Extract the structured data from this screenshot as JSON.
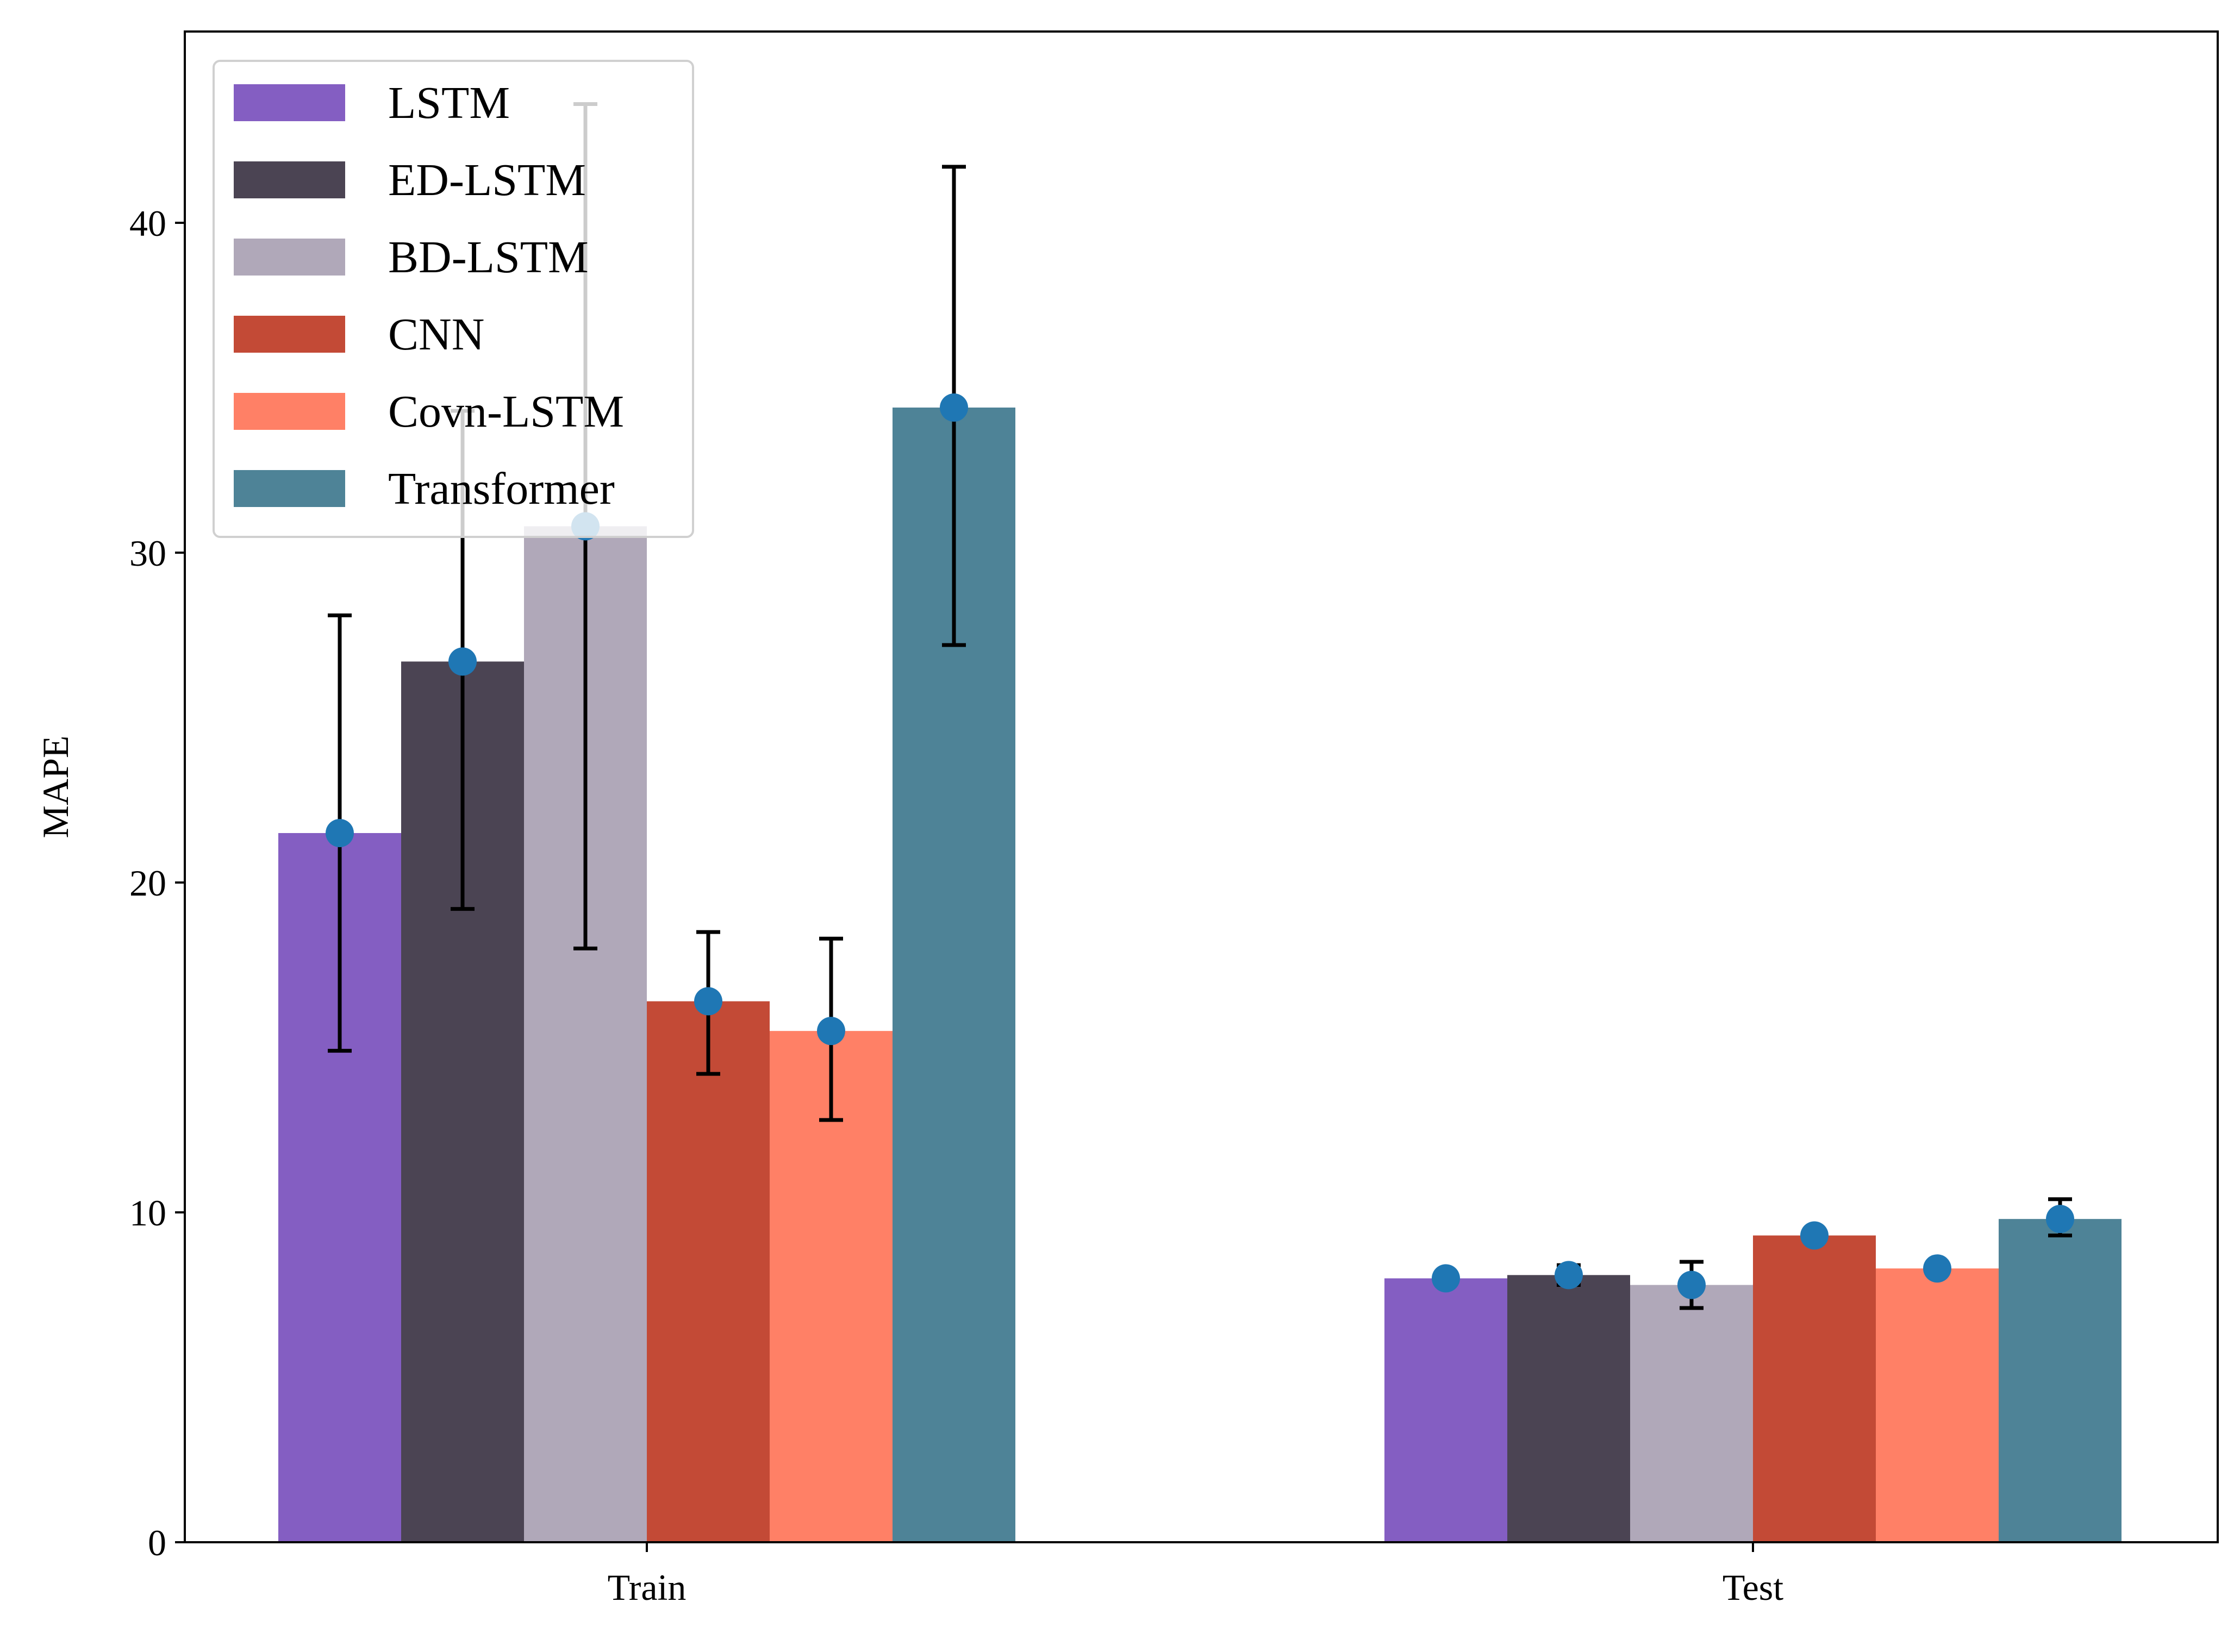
{
  "chart_data": {
    "type": "bar",
    "title": "",
    "xlabel": "",
    "ylabel": "MAPE",
    "categories": [
      "Train",
      "Test"
    ],
    "ylim": [
      0,
      45.8
    ],
    "yticks": [
      0,
      10,
      20,
      30,
      40
    ],
    "grid": false,
    "legend_position": "top-left",
    "marker_color": "#1f77b4",
    "series": [
      {
        "name": "LSTM",
        "color": "#845EC2",
        "values": [
          21.5,
          8.0
        ],
        "error_low": [
          14.9,
          7.9
        ],
        "error_high": [
          28.1,
          8.1
        ]
      },
      {
        "name": "ED-LSTM",
        "color": "#4B4453",
        "values": [
          26.7,
          8.1
        ],
        "error_low": [
          19.2,
          7.8
        ],
        "error_high": [
          34.3,
          8.4
        ]
      },
      {
        "name": "BD-LSTM",
        "color": "#B0A8B9",
        "values": [
          30.8,
          7.8
        ],
        "error_low": [
          18.0,
          7.1
        ],
        "error_high": [
          43.6,
          8.5
        ]
      },
      {
        "name": "CNN",
        "color": "#C34A36",
        "values": [
          16.4,
          9.3
        ],
        "error_low": [
          14.2,
          9.2
        ],
        "error_high": [
          18.5,
          9.4
        ]
      },
      {
        "name": "Covn-LSTM",
        "color": "#FF8066",
        "values": [
          15.5,
          8.3
        ],
        "error_low": [
          12.8,
          8.2
        ],
        "error_high": [
          18.3,
          8.4
        ]
      },
      {
        "name": "Transformer",
        "color": "#4E8397",
        "values": [
          34.4,
          9.8
        ],
        "error_low": [
          27.2,
          9.3
        ],
        "error_high": [
          41.7,
          10.4
        ]
      }
    ]
  }
}
